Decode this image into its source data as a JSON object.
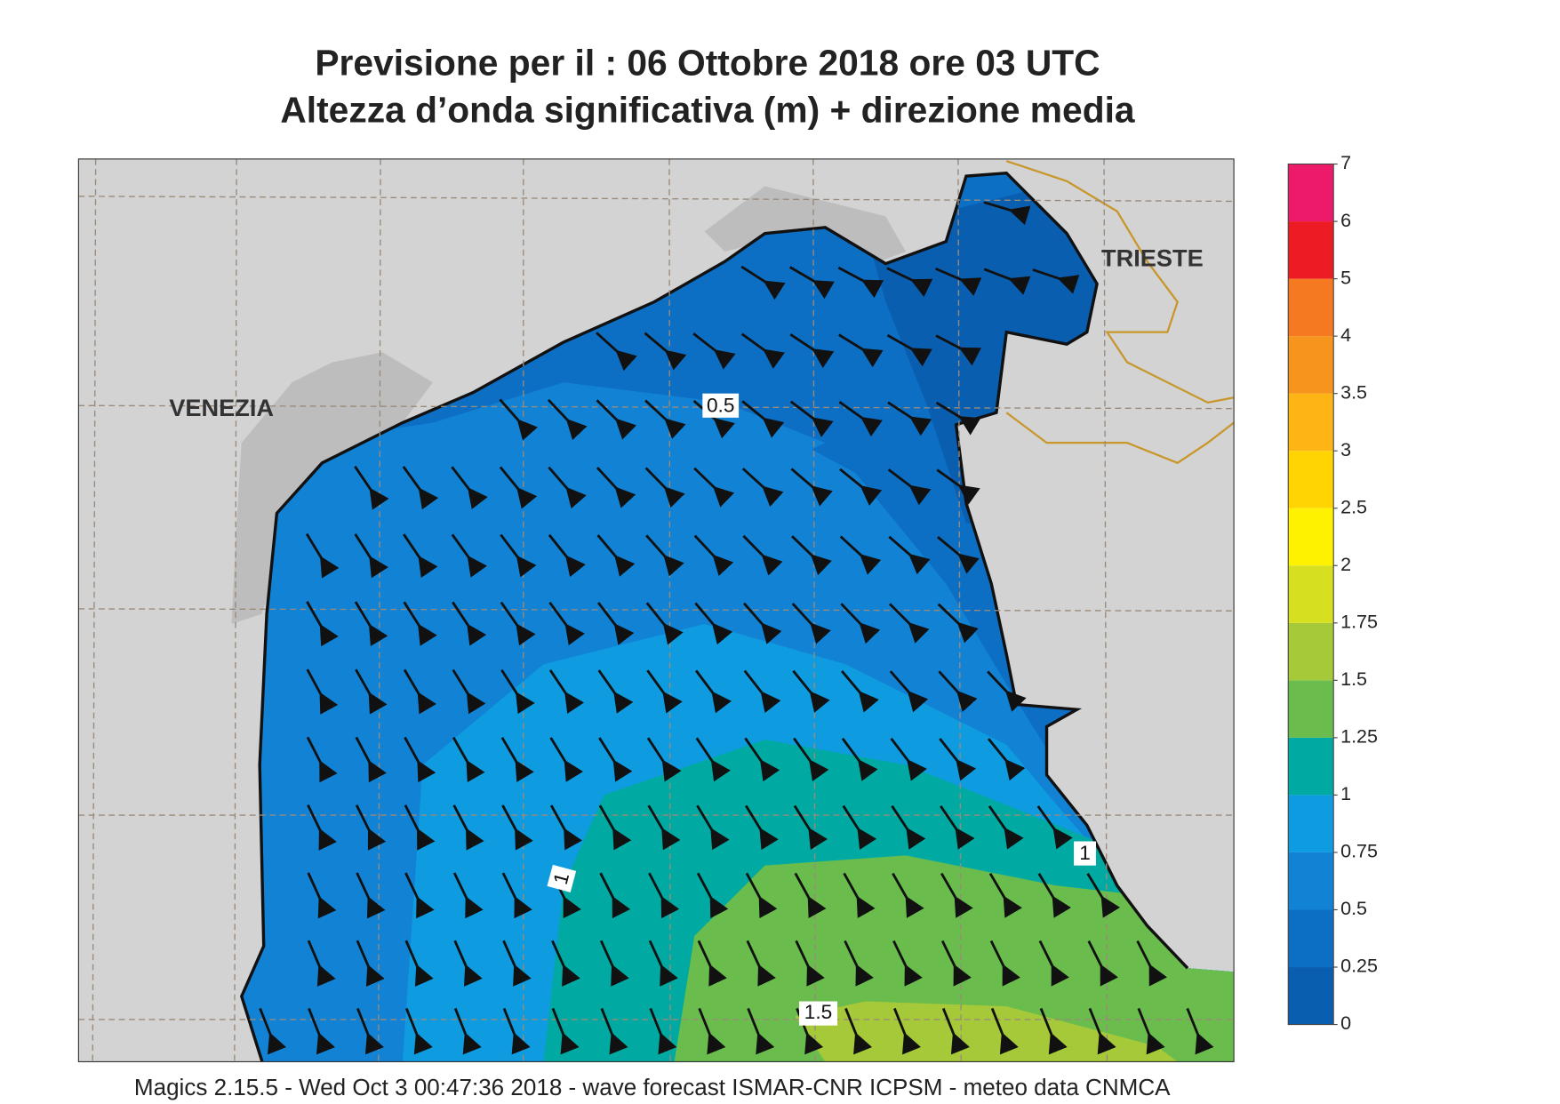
{
  "header": {
    "title": "Previsione per il  :  06  Ottobre  2018   ore 03 UTC",
    "subtitle": "Altezza d’onda significativa (m) + direzione media"
  },
  "map": {
    "cities": [
      "VENEZIA",
      "TRIESTE"
    ],
    "contour_labels": [
      "0.5",
      "1",
      "1",
      "1.5"
    ]
  },
  "colorbar": {
    "ticks": [
      0,
      0.25,
      0.5,
      0.75,
      1,
      1.25,
      1.5,
      1.75,
      2,
      2.5,
      3,
      3.5,
      4,
      5,
      6,
      7
    ],
    "colors": [
      "#0a5eb0",
      "#0d6fc4",
      "#1282d4",
      "#0f9be0",
      "#00aaa2",
      "#6abd4c",
      "#a6c93a",
      "#d6e021",
      "#fff200",
      "#ffd400",
      "#fdb515",
      "#f7941d",
      "#f47920",
      "#ed1c24",
      "#ec1a68"
    ]
  },
  "footer": "Magics 2.15.5 - Wed Oct  3 00:47:36 2018 - wave forecast  ISMAR-CNR  ICPSM - meteo data   CNMCA"
}
